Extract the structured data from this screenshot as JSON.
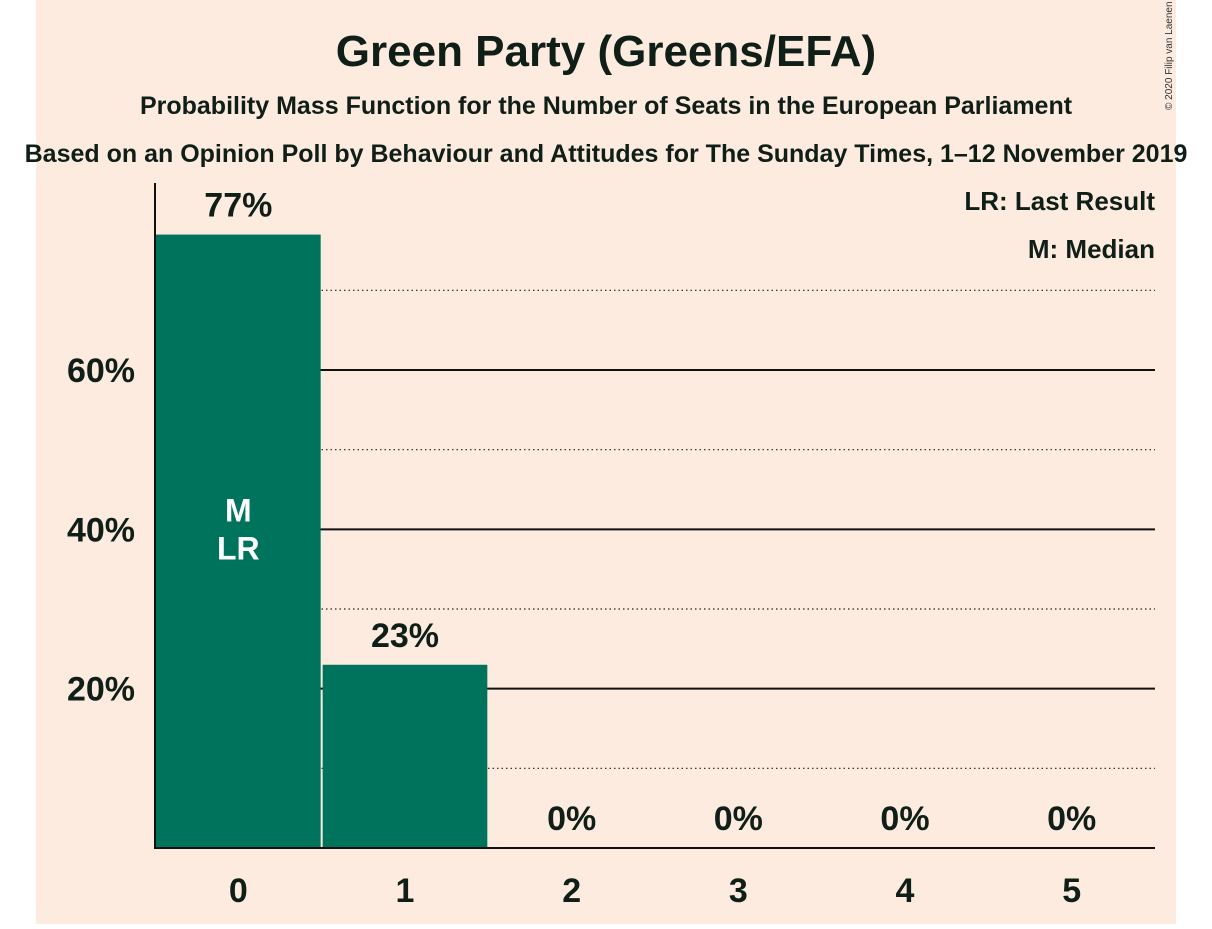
{
  "colors": {
    "background": "#fdebe0",
    "bar": "#00735c",
    "text": "#0f1f17"
  },
  "chart_data": {
    "type": "bar",
    "title": "Green Party (Greens/EFA)",
    "subtitle": "Probability Mass Function for the Number of Seats in the European Parliament",
    "subtitle2": "Based on an Opinion Poll by Behaviour and Attitudes for The Sunday Times, 1–12 November 2019",
    "copyright": "© 2020 Filip van Laenen",
    "legend": [
      "LR: Last Result",
      "M: Median"
    ],
    "legend_position": "top-right",
    "categories": [
      "0",
      "1",
      "2",
      "3",
      "4",
      "5"
    ],
    "values": [
      77,
      23,
      0,
      0,
      0,
      0
    ],
    "value_labels": [
      "77%",
      "23%",
      "0%",
      "0%",
      "0%",
      "0%"
    ],
    "bar_markers": [
      [
        "M",
        "LR"
      ],
      [],
      [],
      [],
      [],
      []
    ],
    "y_ticks": [
      20,
      40,
      60
    ],
    "y_tick_labels": [
      "20%",
      "40%",
      "60%"
    ],
    "y_minor_ticks": [
      10,
      30,
      50,
      70
    ],
    "ylim": [
      0,
      84
    ],
    "grid": true
  }
}
